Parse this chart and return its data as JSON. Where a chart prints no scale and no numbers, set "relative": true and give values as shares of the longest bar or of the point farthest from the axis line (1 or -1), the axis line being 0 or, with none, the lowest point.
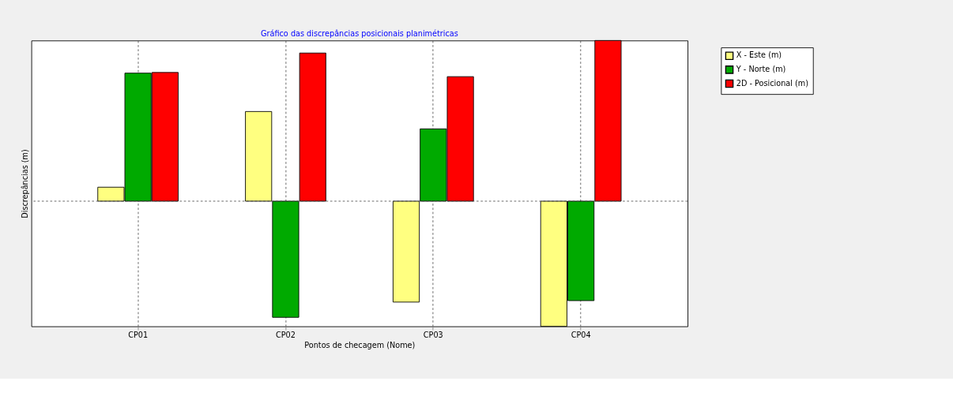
{
  "chart_data": {
    "type": "bar",
    "title": "Gráfico das discrepâncias posicionais planimétricas",
    "xlabel": "Pontos de checagem (Nome)",
    "ylabel": "Discrepâncias (m)",
    "categories": [
      "CP01",
      "CP02",
      "CP03",
      "CP04"
    ],
    "series": [
      {
        "name": "X - Este (m)",
        "color": "#ffff80",
        "values": [
          0.087,
          0.558,
          -0.628,
          -0.779
        ]
      },
      {
        "name": "Y - Norte (m)",
        "color": "#00aa00",
        "values": [
          0.797,
          -0.723,
          0.45,
          -0.619
        ]
      },
      {
        "name": "2D - Posicional (m)",
        "color": "#ff0000",
        "values": [
          0.801,
          0.922,
          0.775,
          1
        ]
      }
    ],
    "relative": true,
    "grid": true,
    "legend": "top right"
  }
}
